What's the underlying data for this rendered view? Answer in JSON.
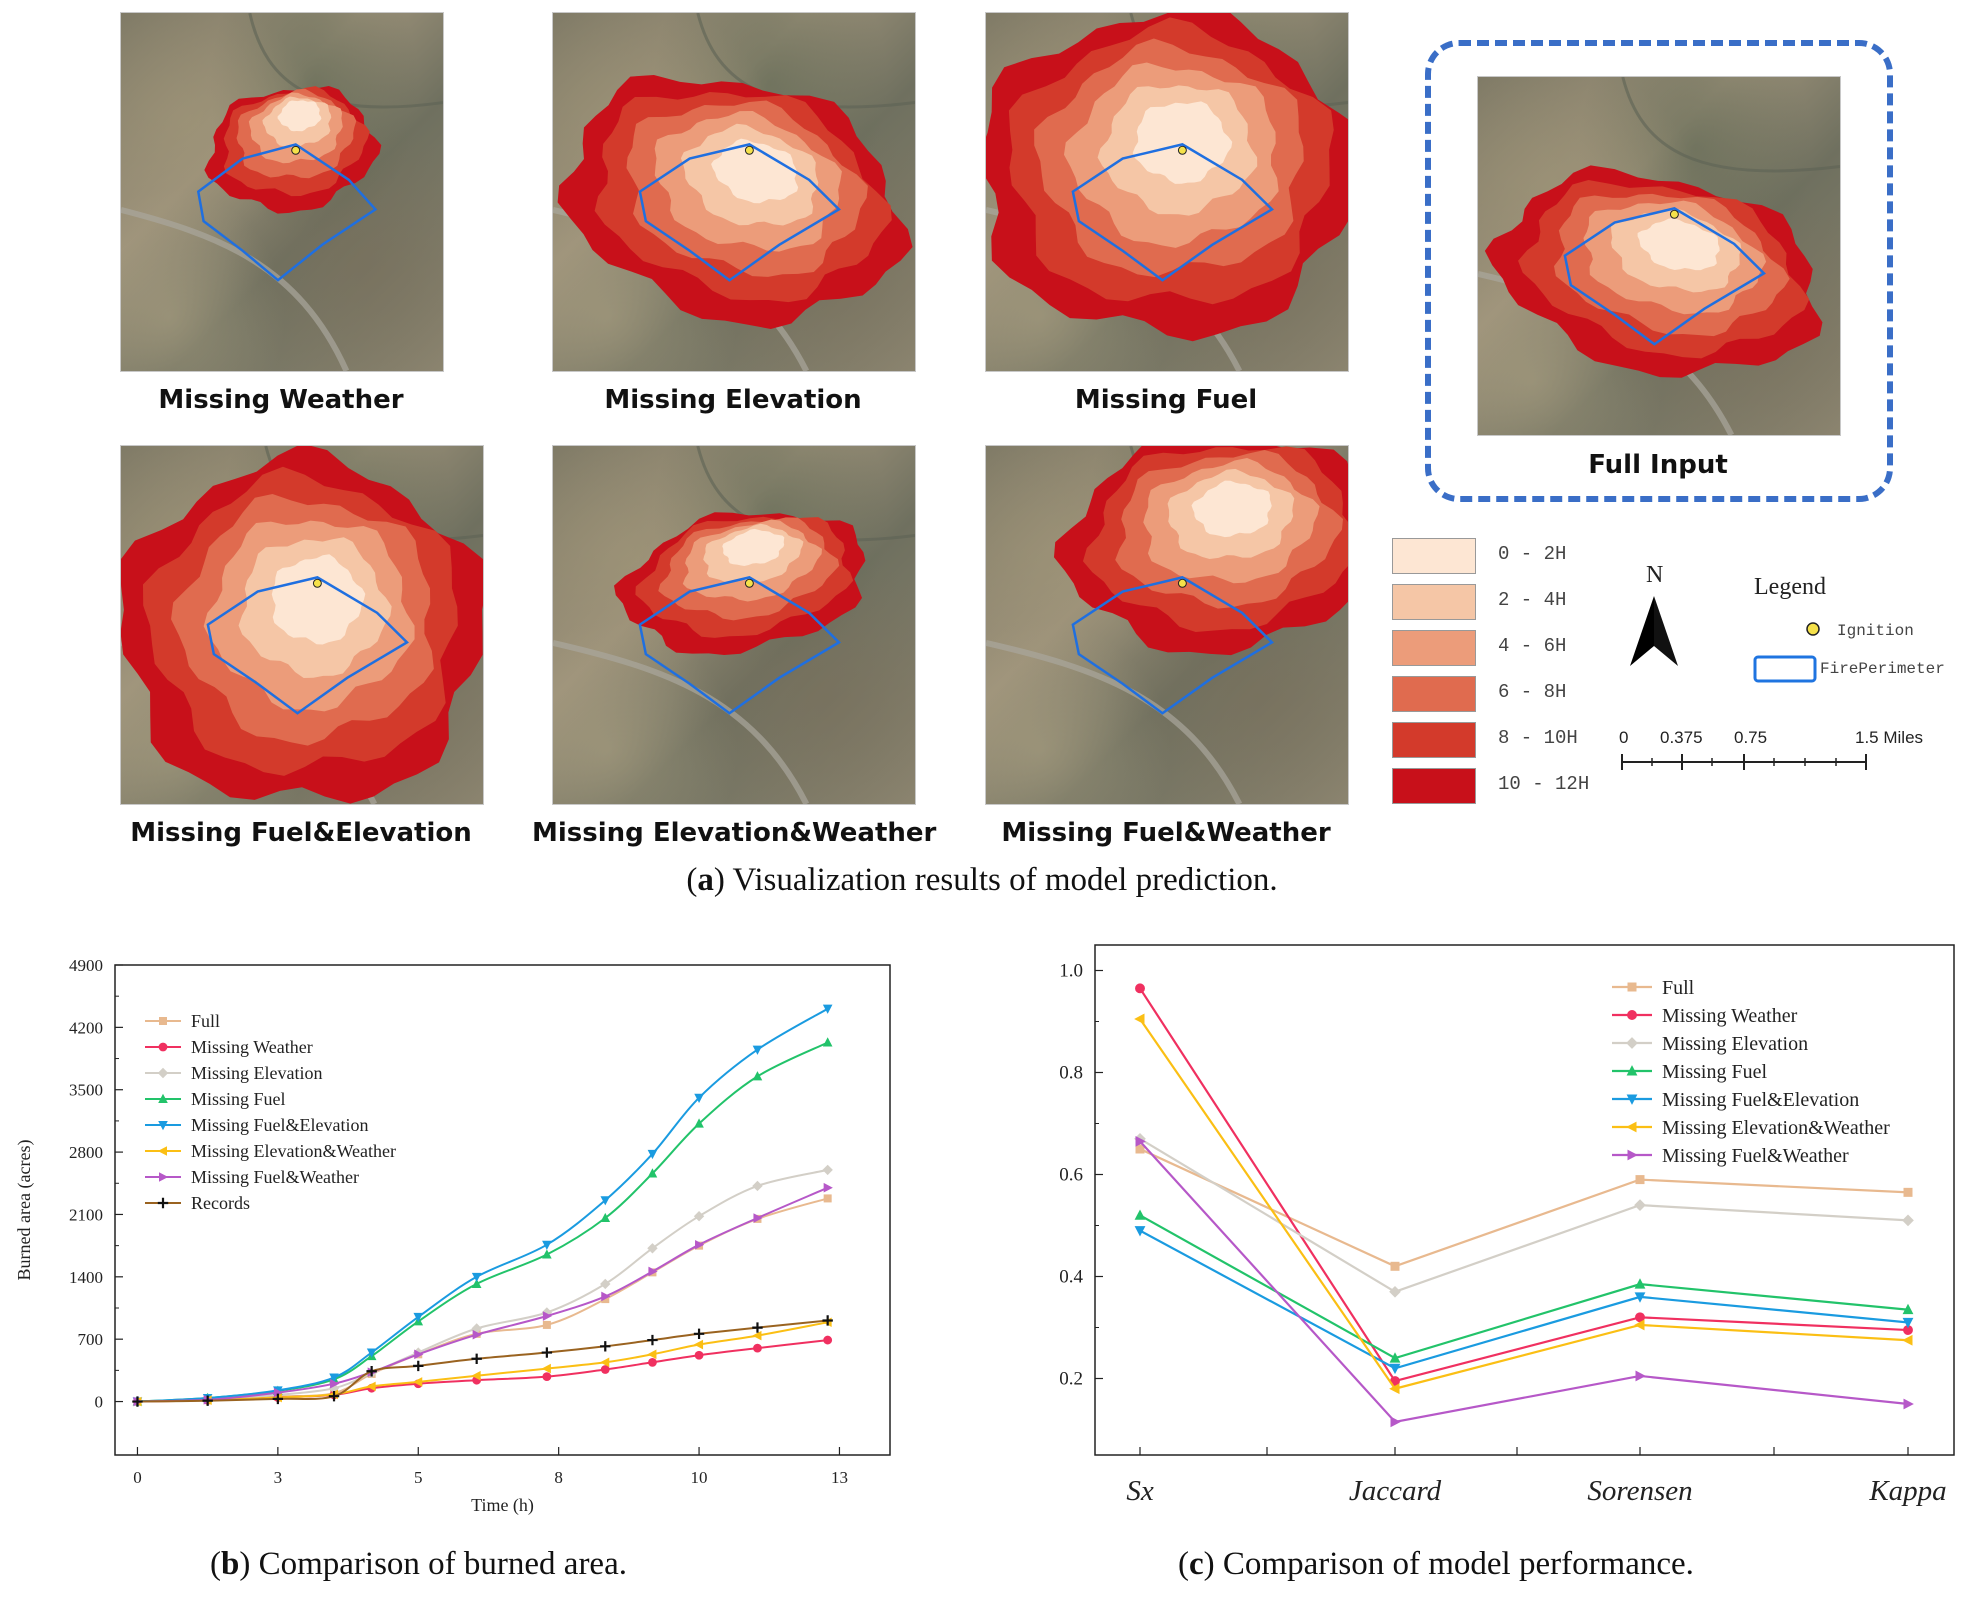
{
  "panels": [
    {
      "name": "missing-weather",
      "label": "Missing Weather"
    },
    {
      "name": "missing-elevation",
      "label": "Missing Elevation"
    },
    {
      "name": "missing-fuel",
      "label": "Missing Fuel"
    },
    {
      "name": "missing-fuel-elevation",
      "label": "Missing Fuel&Elevation"
    },
    {
      "name": "missing-elevation-weather",
      "label": "Missing Elevation&Weather"
    },
    {
      "name": "missing-fuel-weather",
      "label": "Missing Fuel&Weather"
    },
    {
      "name": "full-input",
      "label": "Full Input"
    }
  ],
  "time_legend": [
    {
      "label": "0 - 2H",
      "color": "#fde6d3"
    },
    {
      "label": "2 - 4H",
      "color": "#f5c6a6"
    },
    {
      "label": "4 - 6H",
      "color": "#ec9c7a"
    },
    {
      "label": "6 - 8H",
      "color": "#e06b4f"
    },
    {
      "label": "8 - 10H",
      "color": "#d33a2b"
    },
    {
      "label": "10 - 12H",
      "color": "#c8101a"
    }
  ],
  "map_legend": {
    "north": "N",
    "title": "Legend",
    "ignition": "Ignition",
    "perimeter": "FirePerimeter",
    "scale_labels": [
      "0",
      "0.375",
      "0.75",
      "1.5 Miles"
    ]
  },
  "captions": {
    "a_letter": "a",
    "a_text": ") Visualization results of model prediction.",
    "b_letter": "b",
    "b_text": ") Comparison of burned area.",
    "c_letter": "c",
    "c_text": ") Comparison of model performance."
  },
  "colors": {
    "Full": "#e8b98f",
    "Missing Weather": "#f03060",
    "Missing Elevation": "#d3cfc7",
    "Missing Fuel": "#22c36a",
    "Missing Fuel&Elevation": "#1a9be0",
    "Missing Elevation&Weather": "#fbbf14",
    "Missing Fuel&Weather": "#b658c8",
    "Records": "#9a6320"
  },
  "chart_data": [
    {
      "type": "line",
      "xlabel": "Time (h)",
      "ylabel": "Burned area (acres)",
      "xlim": [
        -0.4,
        13.4
      ],
      "ylim": [
        -600,
        4900
      ],
      "x_ticks": [
        0,
        3,
        5,
        8,
        10,
        13
      ],
      "x_tick_pos": [
        0,
        2.5,
        5,
        7.5,
        10,
        12.5
      ],
      "y_ticks": [
        0,
        700,
        1400,
        2100,
        2800,
        3500,
        4200,
        4900
      ],
      "x": [
        0,
        1.25,
        2.5,
        3.5,
        4.17,
        5,
        6.04,
        7.29,
        8.33,
        9.17,
        10,
        11.04,
        12.29
      ],
      "series": [
        {
          "name": "Full",
          "marker": "square",
          "values": [
            0,
            20,
            55,
            95,
            310,
            530,
            760,
            860,
            1150,
            1450,
            1750,
            2050,
            2280
          ]
        },
        {
          "name": "Missing Weather",
          "marker": "circle",
          "values": [
            0,
            15,
            45,
            75,
            150,
            200,
            240,
            280,
            360,
            440,
            520,
            600,
            690
          ]
        },
        {
          "name": "Missing Elevation",
          "marker": "diamond",
          "values": [
            0,
            25,
            75,
            150,
            320,
            550,
            820,
            1000,
            1320,
            1720,
            2080,
            2420,
            2600
          ]
        },
        {
          "name": "Missing Fuel",
          "marker": "triangle-up",
          "values": [
            0,
            40,
            120,
            250,
            510,
            900,
            1320,
            1650,
            2060,
            2560,
            3120,
            3650,
            4030
          ]
        },
        {
          "name": "Missing Fuel&Elevation",
          "marker": "triangle-down",
          "values": [
            0,
            40,
            125,
            270,
            550,
            950,
            1400,
            1760,
            2260,
            2780,
            3410,
            3950,
            4410
          ]
        },
        {
          "name": "Missing Elevation&Weather",
          "marker": "triangle-left",
          "values": [
            0,
            15,
            45,
            80,
            170,
            220,
            290,
            370,
            440,
            530,
            640,
            740,
            890
          ]
        },
        {
          "name": "Missing Fuel&Weather",
          "marker": "triangle-right",
          "values": [
            0,
            20,
            100,
            200,
            330,
            530,
            750,
            960,
            1180,
            1460,
            1760,
            2060,
            2400
          ]
        },
        {
          "name": "Records",
          "marker": "plus",
          "values": [
            0,
            10,
            30,
            60,
            340,
            400,
            480,
            550,
            620,
            690,
            760,
            830,
            910
          ]
        }
      ]
    },
    {
      "type": "line",
      "xlabel": "",
      "ylabel": "",
      "ylim": [
        0.05,
        1.05
      ],
      "y_ticks": [
        0.2,
        0.4,
        0.6,
        0.8,
        1.0
      ],
      "categories": [
        "Sx",
        "Jaccard",
        "Sorensen",
        "Kappa"
      ],
      "series": [
        {
          "name": "Full",
          "marker": "square",
          "values": [
            0.65,
            0.42,
            0.59,
            0.565
          ]
        },
        {
          "name": "Missing Weather",
          "marker": "circle",
          "values": [
            0.965,
            0.195,
            0.32,
            0.295
          ]
        },
        {
          "name": "Missing Elevation",
          "marker": "diamond",
          "values": [
            0.67,
            0.37,
            0.54,
            0.51
          ]
        },
        {
          "name": "Missing Fuel",
          "marker": "triangle-up",
          "values": [
            0.52,
            0.24,
            0.385,
            0.335
          ]
        },
        {
          "name": "Missing Fuel&Elevation",
          "marker": "triangle-down",
          "values": [
            0.49,
            0.22,
            0.36,
            0.31
          ]
        },
        {
          "name": "Missing Elevation&Weather",
          "marker": "triangle-left",
          "values": [
            0.905,
            0.18,
            0.305,
            0.275
          ]
        },
        {
          "name": "Missing Fuel&Weather",
          "marker": "triangle-right",
          "values": [
            0.665,
            0.115,
            0.205,
            0.15
          ]
        }
      ]
    }
  ]
}
